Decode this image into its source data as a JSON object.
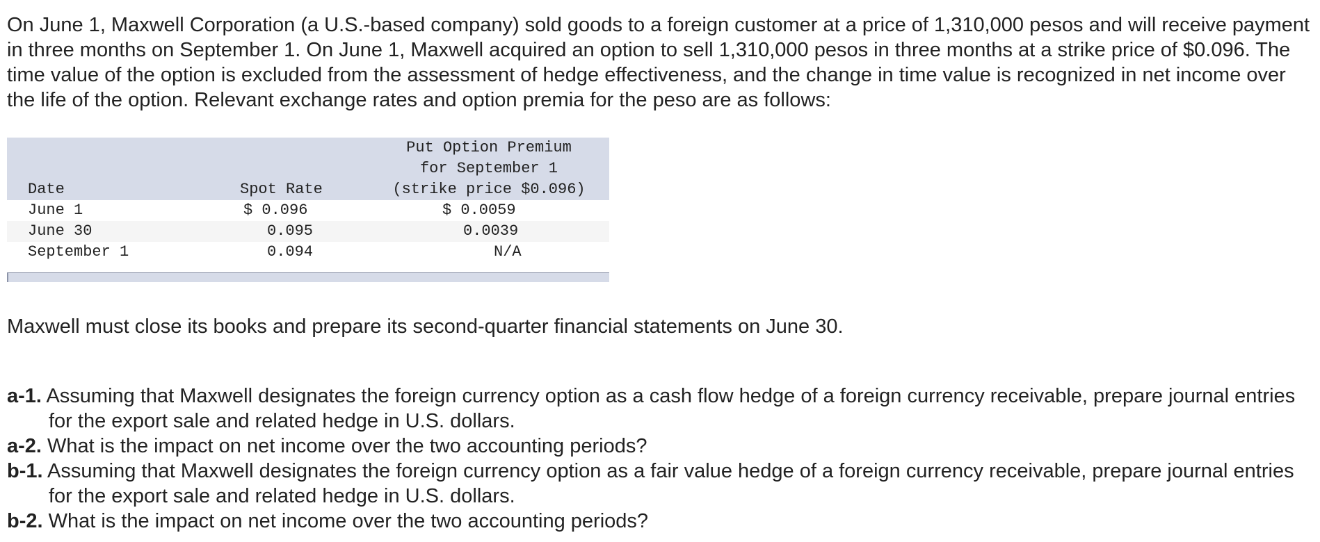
{
  "intro_text": "On June 1, Maxwell Corporation (a U.S.-based company) sold goods to a foreign customer at a price of 1,310,000 pesos and will receive payment in three months on September 1. On June 1, Maxwell acquired an option to sell 1,310,000 pesos in three months at a strike price of $0.096. The time value of the option is excluded from the assessment of hedge effectiveness, and the change in time value is recognized in net income over the life of the option. Relevant exchange rates and option premia for the peso are as follows:",
  "table": {
    "headers": {
      "date": "Date",
      "spot": "Spot Rate",
      "premium_line1": "Put Option Premium",
      "premium_line2": "for September 1",
      "premium_line3": "(strike price $0.096)"
    },
    "rows": [
      {
        "date": "June 1",
        "spot": "$ 0.096",
        "premium": "$ 0.0059"
      },
      {
        "date": "June 30",
        "spot": "0.095",
        "premium": "0.0039"
      },
      {
        "date": "September 1",
        "spot": "0.094",
        "premium": "N/A"
      }
    ]
  },
  "close_note": "Maxwell must close its books and prepare its second-quarter financial statements on June 30.",
  "questions": [
    {
      "label": "a-1.",
      "text": "Assuming that Maxwell designates the foreign currency option as a cash flow hedge of a foreign currency receivable, prepare journal entries for the export sale and related hedge in U.S. dollars."
    },
    {
      "label": "a-2.",
      "text": "What is the impact on net income over the two accounting periods?"
    },
    {
      "label": "b-1.",
      "text": "Assuming that Maxwell designates the foreign currency option as a fair value hedge of a foreign currency receivable, prepare journal entries for the export sale and related hedge in U.S. dollars."
    },
    {
      "label": "b-2.",
      "text": "What is the impact on net income over the two accounting periods?"
    }
  ],
  "colors": {
    "header_band": "#d6dbe8",
    "alt_row": "#f5f5f5",
    "text": "#222222"
  }
}
